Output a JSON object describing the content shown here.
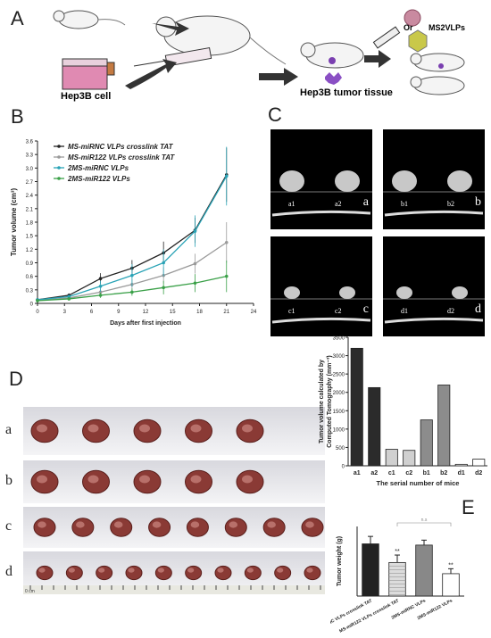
{
  "panels": {
    "A": {
      "label": "A",
      "cell_label": "Hep3B cell",
      "tissue_label": "Hep3B tumor tissue",
      "or_label": "Or",
      "vlp_label": "MS2VLPs"
    },
    "B": {
      "label": "B",
      "legend": [
        "MS-miRNC VLPs crosslink TAT",
        "MS-miR122 VLPs crosslink TAT",
        "2MS-miRNC VLPs",
        "2MS-miR122 VLPs"
      ]
    },
    "C": {
      "label": "C",
      "images": [
        {
          "left": "a1",
          "right": "a2",
          "tag": "a"
        },
        {
          "left": "b1",
          "right": "b2",
          "tag": "b"
        },
        {
          "left": "c1",
          "right": "c2",
          "tag": "c"
        },
        {
          "left": "d1",
          "right": "d2",
          "tag": "d"
        }
      ]
    },
    "D": {
      "label": "D",
      "rows": [
        "a",
        "b",
        "c",
        "d"
      ],
      "ruler_unit": "0 cm"
    },
    "E": {
      "label": "E"
    }
  },
  "chart_data": [
    {
      "type": "line",
      "xlabel": "Days after first injection",
      "ylabel": "Tumor volume (cm³)",
      "xlim": [
        0,
        24
      ],
      "ylim": [
        0,
        3.6
      ],
      "x_ticks": [
        "0",
        "3",
        "6",
        "9",
        "12",
        "15",
        "18",
        "21",
        "24"
      ],
      "y_ticks": [
        "0",
        "0.3",
        "0.6",
        "0.9",
        "1.2",
        "1.5",
        "1.8",
        "2.1",
        "2.4",
        "2.7",
        "3.0",
        "3.3",
        "3.6"
      ],
      "x": [
        0,
        3.5,
        7,
        10.5,
        14,
        17.5,
        21
      ],
      "series": [
        {
          "name": "MS-miRNC VLPs crosslink TAT",
          "color": "#222222",
          "values": [
            0.08,
            0.18,
            0.55,
            0.78,
            1.12,
            1.62,
            2.85
          ],
          "errors": [
            0.02,
            0.04,
            0.12,
            0.18,
            0.25,
            0.28,
            0.6
          ]
        },
        {
          "name": "MS-miR122 VLPs crosslink TAT",
          "color": "#9a9a9a",
          "values": [
            0.07,
            0.12,
            0.25,
            0.42,
            0.62,
            0.88,
            1.35
          ],
          "errors": [
            0.02,
            0.03,
            0.08,
            0.12,
            0.18,
            0.22,
            0.45
          ]
        },
        {
          "name": "2MS-miRNC VLPs",
          "color": "#2aa3b6",
          "values": [
            0.08,
            0.15,
            0.38,
            0.62,
            0.9,
            1.6,
            2.82
          ],
          "errors": [
            0.02,
            0.04,
            0.12,
            0.25,
            0.3,
            0.35,
            0.65
          ]
        },
        {
          "name": "2MS-miR122 VLPs",
          "color": "#3aa048",
          "values": [
            0.06,
            0.1,
            0.18,
            0.25,
            0.35,
            0.45,
            0.6
          ],
          "errors": [
            0.02,
            0.03,
            0.06,
            0.08,
            0.15,
            0.2,
            0.35
          ]
        }
      ]
    },
    {
      "type": "bar",
      "ylabel": "Tumor volume calculated by Computed Tomography (mm⁻³)",
      "xlabel": "The serial number of mice",
      "categories": [
        "a1",
        "a2",
        "c1",
        "c2",
        "b1",
        "b2",
        "d1",
        "d2"
      ],
      "values": [
        3200,
        2130,
        450,
        420,
        1250,
        2200,
        40,
        180
      ],
      "colors": [
        "#2b2b2b",
        "#2b2b2b",
        "#d0d0d0",
        "#d0d0d0",
        "#8c8c8c",
        "#8c8c8c",
        "#ffffff",
        "#ffffff"
      ],
      "ylim": [
        0,
        3500
      ],
      "y_ticks": [
        "0",
        "500",
        "1000",
        "1500",
        "2000",
        "2500",
        "3000",
        "3500"
      ]
    },
    {
      "type": "bar",
      "ylabel": "Tumor weight (g)",
      "categories": [
        "MS-miRNC VLPs crosslink TAT",
        "MS-miR122 VLPs crosslink TAT",
        "2MS-miRNC VLPs",
        "2MS-miR122 VLPs"
      ],
      "values": [
        2.1,
        1.35,
        2.05,
        0.9
      ],
      "errors": [
        0.3,
        0.3,
        0.2,
        0.2
      ],
      "annotations": [
        "",
        "**",
        "",
        "**"
      ],
      "ns_label": "n.s",
      "colors": [
        "#222222",
        "#d8d8d8",
        "#888888",
        "#ffffff"
      ]
    }
  ]
}
